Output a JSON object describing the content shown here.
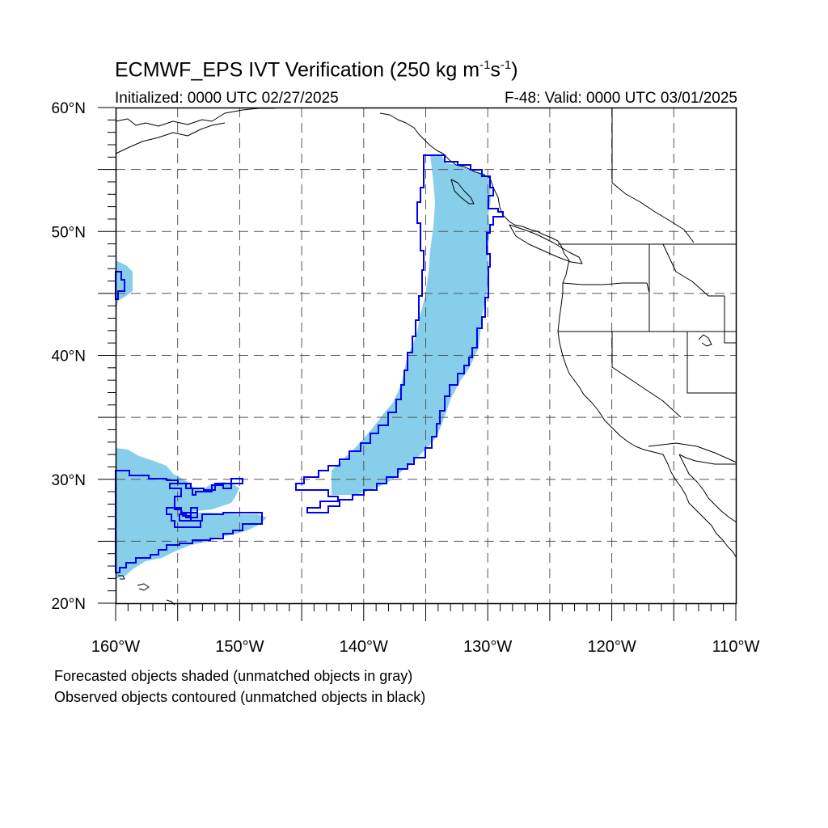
{
  "title": {
    "main": "ECMWF_EPS IVT Verification (250 kg m",
    "exp1": "-1",
    "mid": "s",
    "exp2": "-1",
    "close": ")"
  },
  "initialized": "Initialized: 0000 UTC 02/27/2025",
  "valid": "F-48: Valid: 0000 UTC 03/01/2025",
  "axes": {
    "lat_labels": [
      {
        "lat": 60,
        "label": "60°N"
      },
      {
        "lat": 50,
        "label": "50°N"
      },
      {
        "lat": 40,
        "label": "40°N"
      },
      {
        "lat": 30,
        "label": "30°N"
      },
      {
        "lat": 20,
        "label": "20°N"
      }
    ],
    "lon_labels": [
      {
        "lon": -160,
        "label": "160°W"
      },
      {
        "lon": -150,
        "label": "150°W"
      },
      {
        "lon": -140,
        "label": "140°W"
      },
      {
        "lon": -130,
        "label": "130°W"
      },
      {
        "lon": -120,
        "label": "120°W"
      },
      {
        "lon": -110,
        "label": "110°W"
      }
    ],
    "lon_range": [
      -160,
      -110
    ],
    "lat_range": [
      20,
      60
    ],
    "grid_spacing_deg": 5,
    "grid_style": "dashed"
  },
  "legend": {
    "line1": "Forecasted objects shaded (unmatched objects in gray)",
    "line2": "Observed objects contoured (unmatched objects in black)"
  },
  "colors": {
    "forecast_fill": "#87ceeb",
    "observed_contour": "#0000ee",
    "coastline": "#000000",
    "grid": "#555555"
  }
}
